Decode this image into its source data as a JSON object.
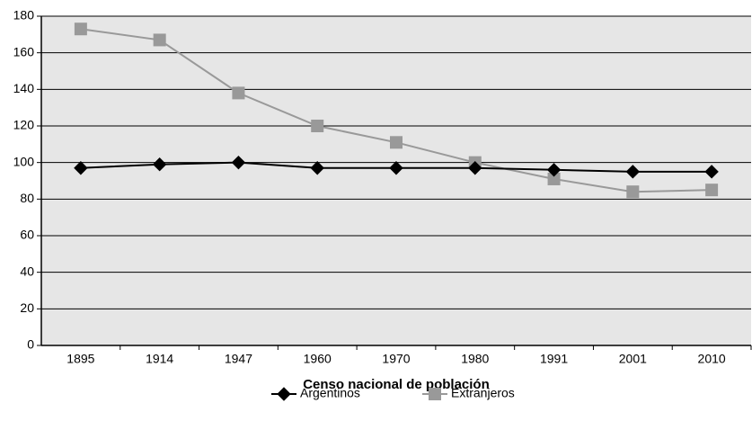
{
  "chart_data": {
    "type": "line",
    "x_label": "Censo nacional de población",
    "categories": [
      "1895",
      "1914",
      "1947",
      "1960",
      "1970",
      "1980",
      "1991",
      "2001",
      "2010"
    ],
    "series": [
      {
        "name": "Argentinos",
        "color": "#000000",
        "marker": "diamond",
        "values": [
          97,
          99,
          100,
          97,
          97,
          97,
          96,
          95,
          95
        ]
      },
      {
        "name": "Extranjeros",
        "color": "#999999",
        "marker": "square",
        "values": [
          173,
          167,
          138,
          120,
          111,
          100,
          91,
          84,
          85
        ]
      }
    ],
    "ylim": [
      0,
      180
    ],
    "yticks": [
      0,
      20,
      40,
      60,
      80,
      100,
      120,
      140,
      160,
      180
    ],
    "grid": true,
    "legend": "bottom"
  }
}
